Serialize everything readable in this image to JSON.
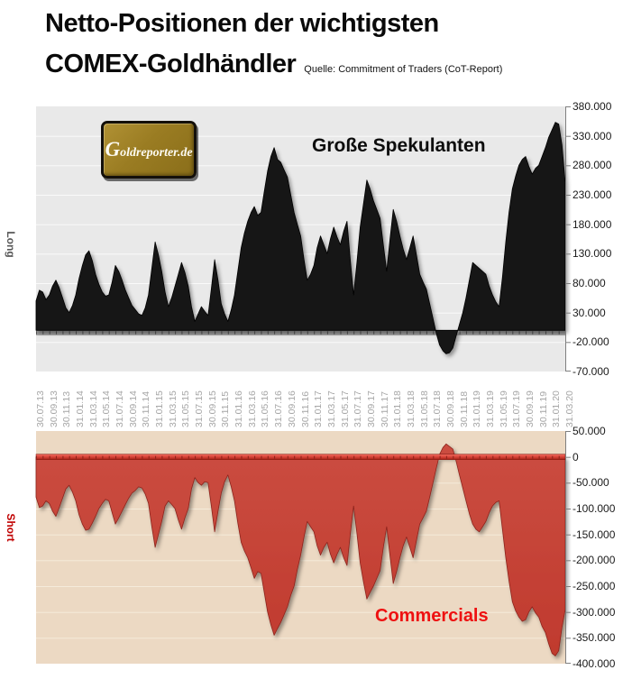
{
  "header": {
    "title_line1": "Netto-Positionen der wichtigsten",
    "title_line2": "COMEX-Goldhändler",
    "source": "Quelle: Commitment of Traders (CoT-Report)"
  },
  "logo": {
    "text": "Goldreporter.de"
  },
  "colors": {
    "spec_area": "#151515",
    "plot_top_bg": "#e9e9e9",
    "plot_top_grid": "#fafafa",
    "plot_bottom_bg": "#ecd9c3",
    "plot_bottom_grid": "#f5ebda",
    "commercials_red": "#c03a2e",
    "commercials_red_dark": "#8c241c",
    "commercials_label_red": "#ee1111",
    "short_label_red": "#c00000",
    "long_label_gray": "#595959",
    "date_label_gray": "#a6a6a6",
    "axis_gray": "#7f7f7f"
  },
  "x_axis": {
    "labels": [
      "30.07.13",
      "30.09.13",
      "30.11.13",
      "31.01.14",
      "31.03.14",
      "31.05.14",
      "31.07.14",
      "30.09.14",
      "30.11.14",
      "31.01.15",
      "31.03.15",
      "31.05.15",
      "31.07.15",
      "30.09.15",
      "30.11.15",
      "31.01.16",
      "31.03.16",
      "31.05.16",
      "31.07.16",
      "30.09.16",
      "30.11.16",
      "31.01.17",
      "31.03.17",
      "31.05.17",
      "31.07.17",
      "30.09.17",
      "30.11.17",
      "31.01.18",
      "31.03.18",
      "31.05.18",
      "31.07.18",
      "30.09.18",
      "30.11.18",
      "31.01.19",
      "31.03.19",
      "31.05.19",
      "31.07.19",
      "30.09.19",
      "30.11.19",
      "31.01.20",
      "31.03.20"
    ]
  },
  "chart_data": [
    {
      "type": "area",
      "title": "Große Spekulanten",
      "side_label": "Long",
      "legend_position": "inside-top",
      "grid": true,
      "ylim": [
        -70000,
        380000
      ],
      "ytick_step": 50000,
      "yticks": [
        "380.000",
        "330.000",
        "280.000",
        "230.000",
        "180.000",
        "130.000",
        "80.000",
        "30.000",
        "-20.000",
        "-70.000"
      ],
      "x_range": [
        "30.07.13",
        "31.03.20"
      ],
      "values": [
        50000,
        68000,
        65000,
        52000,
        60000,
        75000,
        85000,
        72000,
        55000,
        38000,
        30000,
        42000,
        60000,
        88000,
        110000,
        128000,
        135000,
        118000,
        95000,
        78000,
        65000,
        58000,
        60000,
        82000,
        110000,
        100000,
        85000,
        68000,
        55000,
        42000,
        35000,
        28000,
        25000,
        38000,
        60000,
        105000,
        150000,
        128000,
        100000,
        65000,
        40000,
        55000,
        75000,
        95000,
        115000,
        98000,
        75000,
        40000,
        15000,
        28000,
        40000,
        32000,
        25000,
        70000,
        120000,
        85000,
        45000,
        28000,
        15000,
        35000,
        60000,
        100000,
        140000,
        165000,
        185000,
        200000,
        210000,
        195000,
        200000,
        235000,
        270000,
        295000,
        310000,
        290000,
        285000,
        272000,
        260000,
        230000,
        200000,
        180000,
        160000,
        120000,
        85000,
        95000,
        110000,
        140000,
        160000,
        145000,
        130000,
        155000,
        175000,
        158000,
        145000,
        168000,
        185000,
        120000,
        60000,
        115000,
        175000,
        215000,
        255000,
        240000,
        220000,
        205000,
        190000,
        145000,
        100000,
        155000,
        205000,
        185000,
        160000,
        138000,
        120000,
        140000,
        160000,
        128000,
        95000,
        82000,
        70000,
        45000,
        20000,
        -5000,
        -25000,
        -35000,
        -40000,
        -38000,
        -30000,
        -10000,
        10000,
        30000,
        55000,
        85000,
        115000,
        110000,
        105000,
        100000,
        95000,
        75000,
        60000,
        48000,
        40000,
        90000,
        150000,
        200000,
        240000,
        262000,
        280000,
        290000,
        295000,
        278000,
        265000,
        275000,
        280000,
        295000,
        310000,
        328000,
        340000,
        353000,
        350000,
        315000,
        250000
      ]
    },
    {
      "type": "area",
      "title": "Commercials",
      "side_label": "Short",
      "legend_position": "inside-bottom",
      "grid": true,
      "ylim": [
        -400000,
        50000
      ],
      "ytick_step": 50000,
      "yticks": [
        "50.000",
        "0",
        "-50.000",
        "-100.000",
        "-150.000",
        "-200.000",
        "-250.000",
        "-300.000",
        "-350.000",
        "-400.000"
      ],
      "x_range": [
        "30.07.13",
        "31.03.20"
      ],
      "values": [
        -78000,
        -98000,
        -95000,
        -85000,
        -90000,
        -105000,
        -115000,
        -98000,
        -80000,
        -62000,
        -55000,
        -68000,
        -85000,
        -112000,
        -130000,
        -142000,
        -140000,
        -128000,
        -115000,
        -100000,
        -90000,
        -82000,
        -85000,
        -108000,
        -130000,
        -118000,
        -105000,
        -92000,
        -80000,
        -70000,
        -65000,
        -58000,
        -60000,
        -72000,
        -90000,
        -135000,
        -175000,
        -150000,
        -125000,
        -95000,
        -85000,
        -92000,
        -100000,
        -122000,
        -140000,
        -118000,
        -100000,
        -62000,
        -40000,
        -50000,
        -55000,
        -48000,
        -50000,
        -95000,
        -145000,
        -105000,
        -70000,
        -48000,
        -35000,
        -58000,
        -85000,
        -128000,
        -165000,
        -182000,
        -195000,
        -215000,
        -235000,
        -222000,
        -225000,
        -262000,
        -300000,
        -325000,
        -345000,
        -332000,
        -320000,
        -305000,
        -290000,
        -268000,
        -250000,
        -218000,
        -190000,
        -155000,
        -125000,
        -135000,
        -145000,
        -172000,
        -190000,
        -175000,
        -165000,
        -188000,
        -205000,
        -188000,
        -175000,
        -195000,
        -210000,
        -150000,
        -95000,
        -148000,
        -205000,
        -242000,
        -275000,
        -262000,
        -250000,
        -235000,
        -220000,
        -175000,
        -135000,
        -192000,
        -245000,
        -222000,
        -195000,
        -172000,
        -155000,
        -175000,
        -195000,
        -162000,
        -130000,
        -118000,
        -105000,
        -78000,
        -50000,
        -22000,
        5000,
        18000,
        25000,
        20000,
        15000,
        -8000,
        -35000,
        -60000,
        -85000,
        -110000,
        -130000,
        -140000,
        -145000,
        -135000,
        -125000,
        -108000,
        -95000,
        -88000,
        -85000,
        -140000,
        -195000,
        -240000,
        -280000,
        -298000,
        -310000,
        -318000,
        -315000,
        -300000,
        -290000,
        -302000,
        -310000,
        -328000,
        -340000,
        -362000,
        -380000,
        -385000,
        -375000,
        -330000,
        -295000
      ]
    }
  ]
}
